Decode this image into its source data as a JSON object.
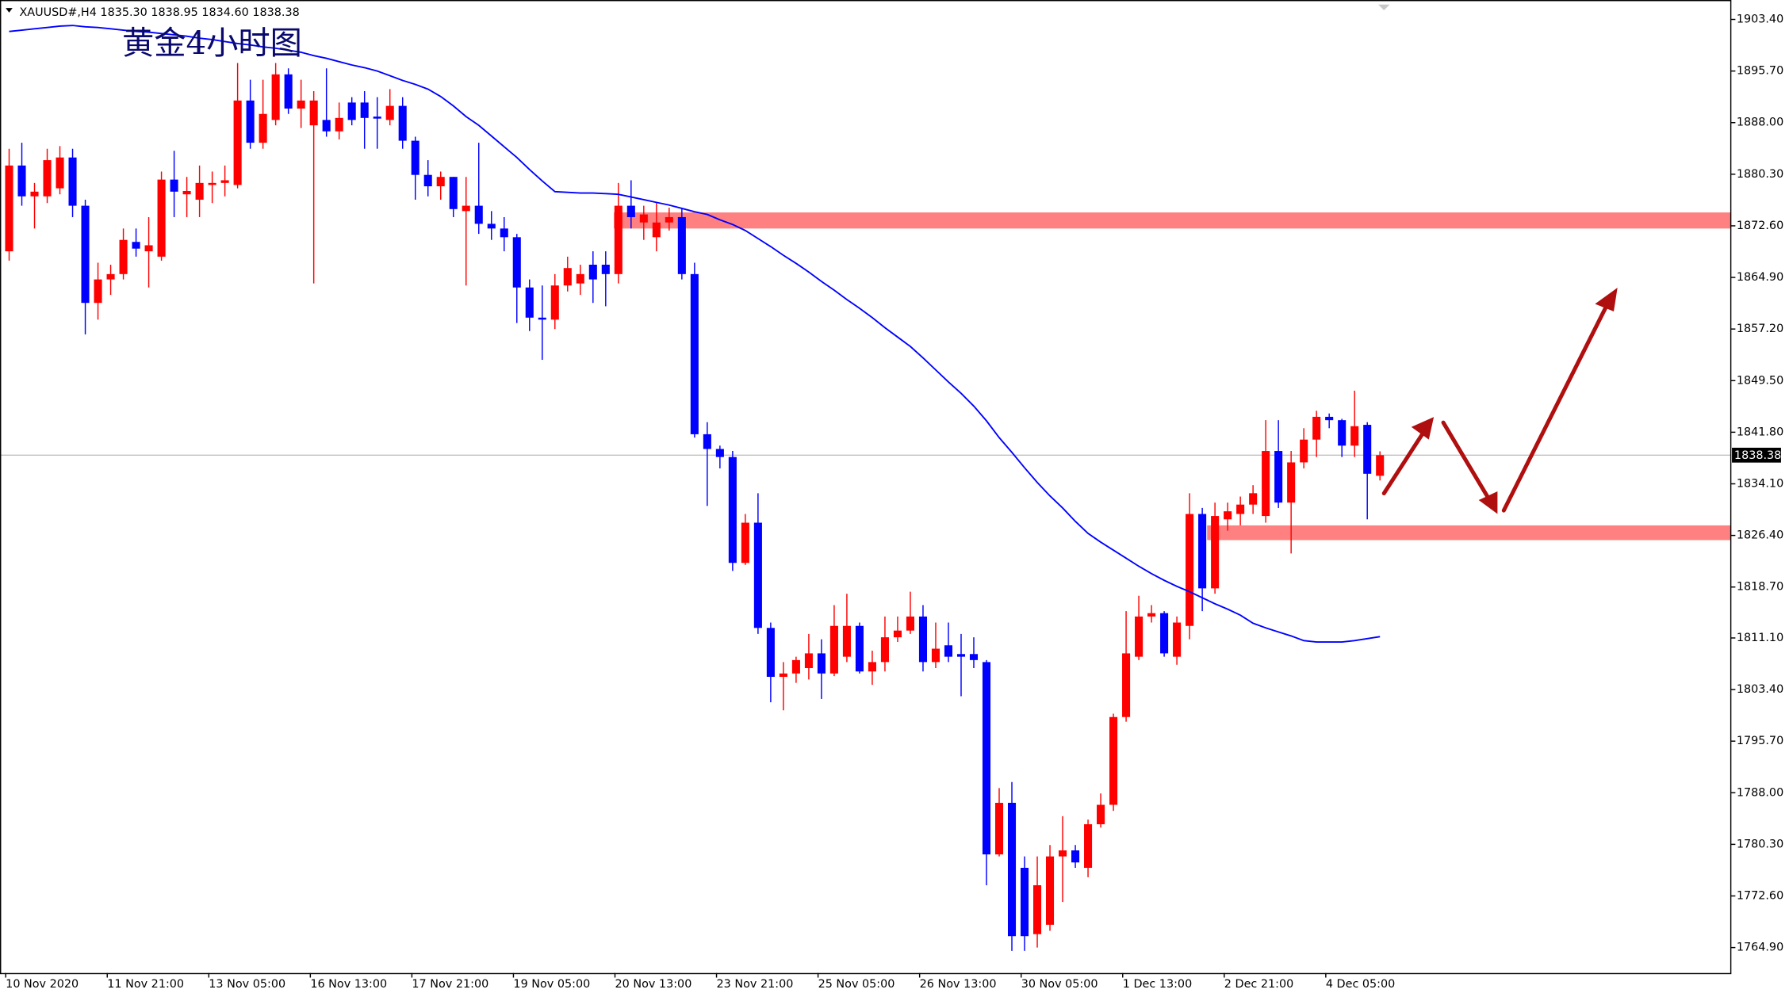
{
  "chart_data": {
    "type": "candlestick",
    "header": "XAUUSD#,H4 1835.30 1838.95 1834.60 1838.38",
    "title": "黄金4小时图",
    "categories": [
      "10 Nov 2020",
      null,
      null,
      null,
      null,
      null,
      null,
      null,
      "11 Nov 21:00",
      null,
      null,
      null,
      null,
      null,
      null,
      null,
      "13 Nov 05:00",
      null,
      null,
      null,
      null,
      null,
      null,
      null,
      "16 Nov 13:00",
      null,
      null,
      null,
      null,
      null,
      null,
      null,
      "17 Nov 21:00",
      null,
      null,
      null,
      null,
      null,
      null,
      null,
      "19 Nov 05:00",
      null,
      null,
      null,
      null,
      null,
      null,
      null,
      "20 Nov 13:00",
      null,
      null,
      null,
      null,
      null,
      null,
      null,
      "23 Nov 21:00",
      null,
      null,
      null,
      null,
      null,
      null,
      null,
      "25 Nov 05:00",
      null,
      null,
      null,
      null,
      null,
      null,
      null,
      "26 Nov 13:00",
      null,
      null,
      null,
      null,
      null,
      null,
      null,
      "30 Nov 05:00",
      null,
      null,
      null,
      null,
      null,
      null,
      null,
      "1 Dec 13:00",
      null,
      null,
      null,
      null,
      null,
      null,
      null,
      "2 Dec 21:00",
      null,
      null,
      null,
      null,
      null,
      null,
      null,
      "4 Dec 05:00",
      null,
      null,
      null,
      null
    ],
    "open": [
      1868.8,
      1881.6,
      1877.0,
      1877.0,
      1878.2,
      1882.8,
      1875.6,
      1861.1,
      1864.6,
      1865.4,
      1870.2,
      1868.8,
      1868.0,
      1879.5,
      1877.3,
      1876.5,
      1878.7,
      1879.0,
      1878.7,
      1891.3,
      1885.0,
      1888.4,
      1895.2,
      1890.1,
      1887.6,
      1888.4,
      1886.7,
      1891.0,
      1891.0,
      1888.9,
      1888.4,
      1890.5,
      1885.3,
      1880.2,
      1878.5,
      1879.9,
      1874.8,
      1875.6,
      1872.9,
      1872.2,
      1870.9,
      1863.4,
      1858.9,
      1858.6,
      1863.7,
      1864.0,
      1866.8,
      1866.8,
      1865.4,
      1875.6,
      1873.1,
      1870.9,
      1873.1,
      1873.9,
      1865.4,
      1841.5,
      1839.3,
      1838.1,
      1822.3,
      1828.3,
      1812.6,
      1805.3,
      1805.8,
      1806.6,
      1808.8,
      1805.8,
      1808.3,
      1812.9,
      1806.1,
      1807.5,
      1811.2,
      1812.2,
      1814.3,
      1807.5,
      1810.0,
      1808.7,
      1808.7,
      1807.5,
      1778.8,
      1786.5,
      1776.8,
      1766.9,
      1768.3,
      1778.5,
      1779.4,
      1776.8,
      1783.3,
      1786.2,
      1799.3,
      1808.3,
      1814.3,
      1814.8,
      1808.3,
      1812.9,
      1829.6,
      1818.5,
      1828.8,
      1829.6,
      1831.0,
      1829.3,
      1839.0,
      1831.3,
      1837.3,
      1840.7,
      1844.1,
      1843.6,
      1839.8,
      1842.9,
      1835.3
    ],
    "high": [
      1884.1,
      1885.0,
      1879.0,
      1884.1,
      1884.5,
      1884.1,
      1876.5,
      1867.1,
      1866.8,
      1872.2,
      1872.2,
      1873.9,
      1880.7,
      1883.8,
      1879.9,
      1881.6,
      1880.7,
      1881.6,
      1896.9,
      1894.4,
      1894.4,
      1896.9,
      1896.1,
      1894.4,
      1892.7,
      1896.1,
      1891.0,
      1891.8,
      1892.7,
      1891.8,
      1893.0,
      1891.8,
      1885.9,
      1882.4,
      1880.7,
      1879.9,
      1879.9,
      1885.0,
      1874.8,
      1873.9,
      1871.4,
      1864.6,
      1863.7,
      1865.4,
      1868.0,
      1866.8,
      1868.8,
      1868.8,
      1879.0,
      1879.4,
      1875.6,
      1876.0,
      1875.3,
      1875.3,
      1867.1,
      1843.3,
      1839.8,
      1839.0,
      1829.6,
      1832.7,
      1813.4,
      1807.5,
      1808.3,
      1811.7,
      1810.9,
      1816.0,
      1817.7,
      1813.4,
      1809.2,
      1814.3,
      1814.3,
      1818.0,
      1816.0,
      1813.4,
      1813.4,
      1811.7,
      1811.2,
      1807.8,
      1788.7,
      1789.6,
      1778.5,
      1778.5,
      1780.2,
      1784.5,
      1780.2,
      1784.0,
      1787.9,
      1799.8,
      1815.1,
      1817.4,
      1816.0,
      1815.1,
      1814.3,
      1832.7,
      1830.5,
      1831.3,
      1831.3,
      1832.2,
      1833.9,
      1843.6,
      1843.6,
      1839.0,
      1842.4,
      1845.0,
      1844.6,
      1843.8,
      1848.0,
      1843.3,
      1838.95
    ],
    "low": [
      1867.4,
      1875.6,
      1872.2,
      1876.0,
      1877.3,
      1873.9,
      1856.4,
      1858.6,
      1862.3,
      1864.6,
      1868.0,
      1863.4,
      1867.4,
      1873.9,
      1873.9,
      1873.9,
      1876.0,
      1877.0,
      1878.2,
      1884.1,
      1884.1,
      1887.6,
      1889.3,
      1887.2,
      1864.0,
      1885.9,
      1885.5,
      1887.6,
      1884.1,
      1884.1,
      1887.6,
      1884.1,
      1876.5,
      1877.0,
      1876.5,
      1873.9,
      1863.7,
      1871.4,
      1870.5,
      1868.8,
      1858.1,
      1856.9,
      1852.6,
      1857.2,
      1862.8,
      1862.3,
      1861.1,
      1860.6,
      1864.0,
      1872.2,
      1870.5,
      1868.8,
      1871.9,
      1864.6,
      1841.0,
      1830.8,
      1836.4,
      1821.1,
      1822.0,
      1811.7,
      1801.5,
      1800.3,
      1804.4,
      1804.9,
      1802.0,
      1805.4,
      1807.5,
      1805.8,
      1804.1,
      1806.1,
      1810.5,
      1811.7,
      1806.1,
      1806.6,
      1807.5,
      1802.4,
      1806.6,
      1774.2,
      1778.5,
      1764.4,
      1764.4,
      1764.9,
      1767.4,
      1771.7,
      1776.8,
      1775.4,
      1782.8,
      1785.3,
      1798.6,
      1807.8,
      1813.4,
      1808.3,
      1807.1,
      1810.9,
      1815.1,
      1817.7,
      1827.1,
      1827.9,
      1829.6,
      1828.3,
      1830.5,
      1823.7,
      1836.4,
      1838.1,
      1842.4,
      1838.1,
      1838.1,
      1828.8,
      1834.6
    ],
    "close": [
      1881.6,
      1877.0,
      1877.7,
      1882.4,
      1882.8,
      1875.6,
      1861.1,
      1864.6,
      1865.4,
      1870.5,
      1869.2,
      1869.7,
      1879.5,
      1877.7,
      1877.8,
      1879.0,
      1879.0,
      1879.4,
      1891.3,
      1885.0,
      1889.3,
      1895.2,
      1890.1,
      1891.3,
      1891.3,
      1886.7,
      1888.7,
      1888.4,
      1888.7,
      1888.6,
      1890.5,
      1885.3,
      1880.2,
      1878.5,
      1879.9,
      1875.1,
      1875.6,
      1872.9,
      1872.2,
      1870.9,
      1863.4,
      1858.9,
      1858.6,
      1863.7,
      1866.3,
      1865.4,
      1864.6,
      1865.4,
      1875.6,
      1873.9,
      1874.3,
      1873.1,
      1873.9,
      1865.4,
      1841.5,
      1839.3,
      1838.1,
      1822.3,
      1828.3,
      1812.6,
      1805.3,
      1805.8,
      1807.8,
      1808.8,
      1805.8,
      1812.9,
      1812.9,
      1806.1,
      1807.5,
      1811.2,
      1812.2,
      1814.3,
      1807.5,
      1809.5,
      1808.3,
      1808.3,
      1807.8,
      1778.8,
      1786.5,
      1766.6,
      1766.6,
      1774.2,
      1778.5,
      1779.4,
      1777.6,
      1783.3,
      1786.2,
      1799.3,
      1808.8,
      1814.3,
      1814.8,
      1808.8,
      1813.4,
      1829.6,
      1818.5,
      1829.3,
      1830.0,
      1831.0,
      1832.7,
      1839.0,
      1831.3,
      1837.3,
      1840.7,
      1844.1,
      1843.6,
      1839.8,
      1842.7,
      1835.6,
      1838.38
    ],
    "up_color": "#ff0000",
    "down_color": "#0000ff",
    "ma": {
      "color": "#0000ff",
      "values": [
        1901.6,
        1901.8,
        1902.0,
        1902.2,
        1902.4,
        1902.5,
        1902.3,
        1902.2,
        1902.0,
        1901.8,
        1901.6,
        1901.5,
        1901.3,
        1901.1,
        1900.9,
        1900.6,
        1900.4,
        1900.1,
        1899.8,
        1899.6,
        1899.3,
        1899.1,
        1898.8,
        1898.5,
        1898.0,
        1897.6,
        1897.1,
        1896.6,
        1896.2,
        1895.7,
        1895.0,
        1894.3,
        1893.7,
        1893.0,
        1891.9,
        1890.5,
        1888.9,
        1887.6,
        1886.0,
        1884.4,
        1882.8,
        1881.0,
        1879.3,
        1877.7,
        1877.6,
        1877.5,
        1877.5,
        1877.4,
        1877.3,
        1876.9,
        1876.5,
        1876.1,
        1875.7,
        1875.2,
        1874.7,
        1874.3,
        1873.5,
        1872.8,
        1871.9,
        1870.7,
        1869.5,
        1868.2,
        1867.0,
        1865.7,
        1864.3,
        1863.0,
        1861.6,
        1860.3,
        1858.9,
        1857.4,
        1856.0,
        1854.6,
        1852.9,
        1851.1,
        1849.3,
        1847.6,
        1845.7,
        1843.5,
        1841.0,
        1838.8,
        1836.5,
        1834.3,
        1832.3,
        1830.5,
        1828.5,
        1826.7,
        1825.4,
        1824.2,
        1823.0,
        1821.8,
        1820.7,
        1819.7,
        1818.8,
        1818.0,
        1817.1,
        1816.2,
        1815.4,
        1814.5,
        1813.3,
        1812.6,
        1812.0,
        1811.4,
        1810.7,
        1810.5,
        1810.5,
        1810.5,
        1810.7,
        1811.0,
        1811.3
      ]
    },
    "zones": [
      {
        "from": 1872.2,
        "to": 1874.6,
        "color": "#ff8080"
      },
      {
        "from": 1825.7,
        "to": 1827.9,
        "color": "#ff8080"
      }
    ],
    "last_price": {
      "value": 1838.38,
      "label": "1838.38"
    },
    "ylim": [
      1761.1,
      1906.3
    ],
    "yticks": [
      {
        "value": 1903.4,
        "label": "1903.40"
      },
      {
        "value": 1895.7,
        "label": "1895.70"
      },
      {
        "value": 1888.0,
        "label": "1888.00"
      },
      {
        "value": 1880.3,
        "label": "1880.30"
      },
      {
        "value": 1872.6,
        "label": "1872.60"
      },
      {
        "value": 1864.9,
        "label": "1864.90"
      },
      {
        "value": 1857.2,
        "label": "1857.20"
      },
      {
        "value": 1849.5,
        "label": "1849.50"
      },
      {
        "value": 1841.8,
        "label": "1841.80"
      },
      {
        "value": 1834.1,
        "label": "1834.10"
      },
      {
        "value": 1826.4,
        "label": "1826.40"
      },
      {
        "value": 1818.7,
        "label": "1818.70"
      },
      {
        "value": 1811.1,
        "label": "1811.10"
      },
      {
        "value": 1803.4,
        "label": "1803.40"
      },
      {
        "value": 1795.7,
        "label": "1795.70"
      },
      {
        "value": 1788.0,
        "label": "1788.00"
      },
      {
        "value": 1780.3,
        "label": "1780.30"
      },
      {
        "value": 1772.6,
        "label": "1772.60"
      },
      {
        "value": 1764.9,
        "label": "1764.90"
      }
    ]
  }
}
